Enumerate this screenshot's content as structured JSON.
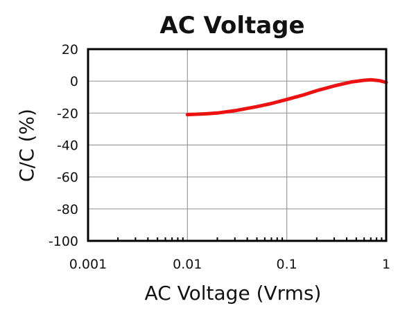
{
  "chart_data": {
    "type": "line",
    "title": "AC Voltage",
    "xlabel": "AC Voltage (Vrms)",
    "ylabel": "C/C (%)",
    "x_scale": "log",
    "xlim": [
      0.001,
      1
    ],
    "ylim": [
      -100,
      20
    ],
    "x_ticks": [
      {
        "value": 0.001,
        "label": "0.001"
      },
      {
        "value": 0.01,
        "label": "0.01"
      },
      {
        "value": 0.1,
        "label": "0.1"
      },
      {
        "value": 1,
        "label": "1"
      }
    ],
    "y_ticks": [
      {
        "value": 20,
        "label": "20"
      },
      {
        "value": 0,
        "label": "0"
      },
      {
        "value": -20,
        "label": "-20"
      },
      {
        "value": -40,
        "label": "-40"
      },
      {
        "value": -60,
        "label": "-60"
      },
      {
        "value": -80,
        "label": "-80"
      },
      {
        "value": -100,
        "label": "-100"
      }
    ],
    "grid": true,
    "legend": "none",
    "series": [
      {
        "color": "#ee1111",
        "x": [
          0.01,
          0.015,
          0.02,
          0.03,
          0.05,
          0.07,
          0.1,
          0.15,
          0.2,
          0.3,
          0.45,
          0.6,
          0.7,
          0.85,
          1
        ],
        "y": [
          -21,
          -20.5,
          -20,
          -18.5,
          -16,
          -14,
          -11.5,
          -8.5,
          -6,
          -3,
          -0.5,
          0.5,
          0.8,
          0.3,
          -0.8
        ]
      }
    ]
  }
}
